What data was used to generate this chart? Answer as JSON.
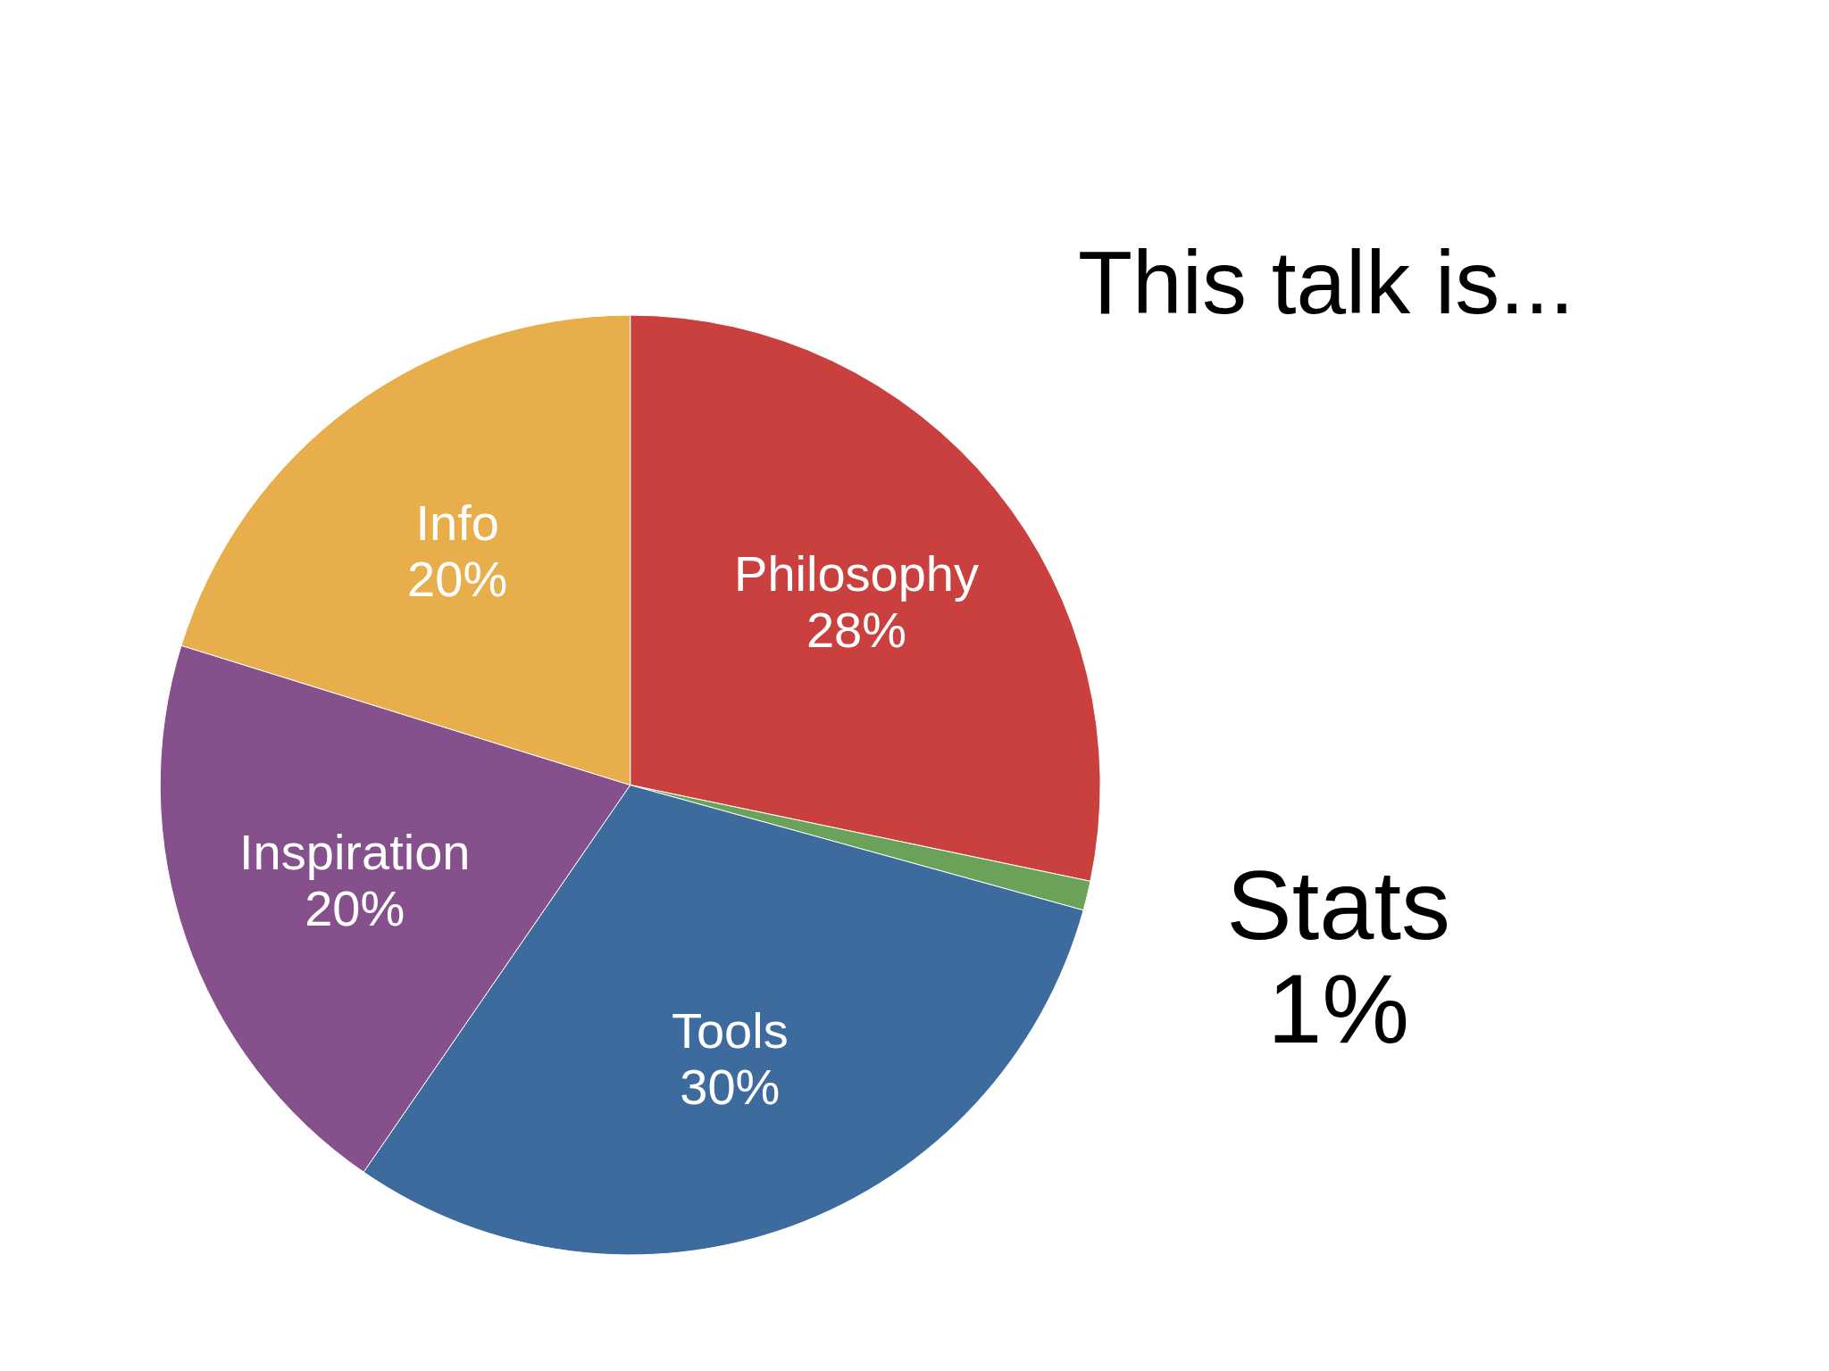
{
  "chart_data": {
    "type": "pie",
    "title": "This talk is...",
    "categories": [
      "Philosophy",
      "Stats",
      "Tools",
      "Inspiration",
      "Info"
    ],
    "values": [
      28,
      1,
      30,
      20,
      20
    ],
    "value_labels": [
      "28%",
      "1%",
      "30%",
      "20%",
      "20%"
    ],
    "colors": [
      "#c9403f",
      "#6aa25a",
      "#3d6b9e",
      "#85508c",
      "#e9ae4c"
    ]
  }
}
